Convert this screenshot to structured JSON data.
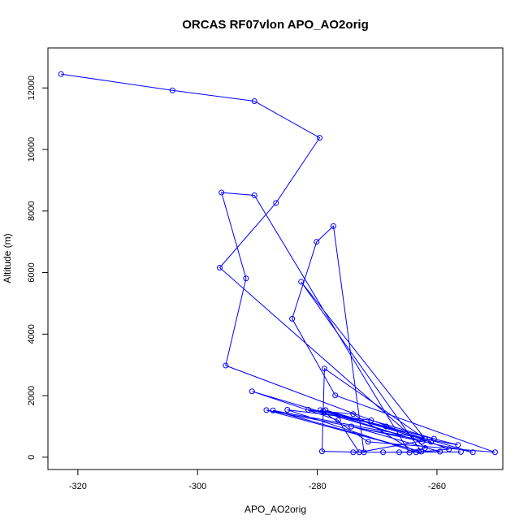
{
  "chart_data": {
    "type": "line",
    "title": "ORCAS RF07vlon APO_AO2orig",
    "xlabel": "APO_AO2orig",
    "ylabel": "Altitude (m)",
    "xlim": [
      -325,
      -249
    ],
    "ylim": [
      -400,
      13300
    ],
    "xticks": [
      -320,
      -300,
      -280,
      -260
    ],
    "yticks": [
      0,
      2000,
      4000,
      6000,
      8000,
      10000,
      12000
    ],
    "grid": false,
    "marker": "open-circle",
    "line_color": "#0000ff",
    "points": [
      [
        -322.8,
        12450
      ],
      [
        -304.2,
        11920
      ],
      [
        -290.5,
        11570
      ],
      [
        -279.6,
        10380
      ],
      [
        -286.9,
        8260
      ],
      [
        -296.3,
        6160
      ],
      [
        -262.0,
        300
      ],
      [
        -264.6,
        150
      ],
      [
        -290.5,
        8510
      ],
      [
        -296.0,
        8600
      ],
      [
        -291.9,
        5810
      ],
      [
        -295.3,
        2980
      ],
      [
        -258.0,
        260
      ],
      [
        -262.6,
        180
      ],
      [
        -282.7,
        5700
      ],
      [
        -262.0,
        600
      ],
      [
        -278.8,
        2880
      ],
      [
        -279.2,
        190
      ],
      [
        -272.2,
        160
      ],
      [
        -277.3,
        7510
      ],
      [
        -280.1,
        7000
      ],
      [
        -284.2,
        4500
      ],
      [
        -277.0,
        2010
      ],
      [
        -250.3,
        160
      ],
      [
        -271.5,
        500
      ],
      [
        -279.5,
        1530
      ],
      [
        -268.5,
        1000
      ],
      [
        -281.5,
        1540
      ],
      [
        -274.0,
        1400
      ],
      [
        -263.5,
        160
      ],
      [
        -285.0,
        1540
      ],
      [
        -271.0,
        1200
      ],
      [
        -260.5,
        600
      ],
      [
        -273.0,
        160
      ],
      [
        -276.5,
        1200
      ],
      [
        -290.9,
        2140
      ],
      [
        -262.5,
        500
      ],
      [
        -279.0,
        1500
      ],
      [
        -256.5,
        400
      ],
      [
        -287.4,
        1520
      ],
      [
        -263.0,
        200
      ],
      [
        -288.5,
        1530
      ],
      [
        -261.0,
        500
      ],
      [
        -278.6,
        1530
      ],
      [
        -254.0,
        160
      ],
      [
        -274.3,
        1000
      ],
      [
        -259.5,
        180
      ],
      [
        -269.0,
        160
      ],
      [
        -266.3,
        160
      ],
      [
        -274.0,
        160
      ],
      [
        -256.0,
        170
      ]
    ]
  }
}
